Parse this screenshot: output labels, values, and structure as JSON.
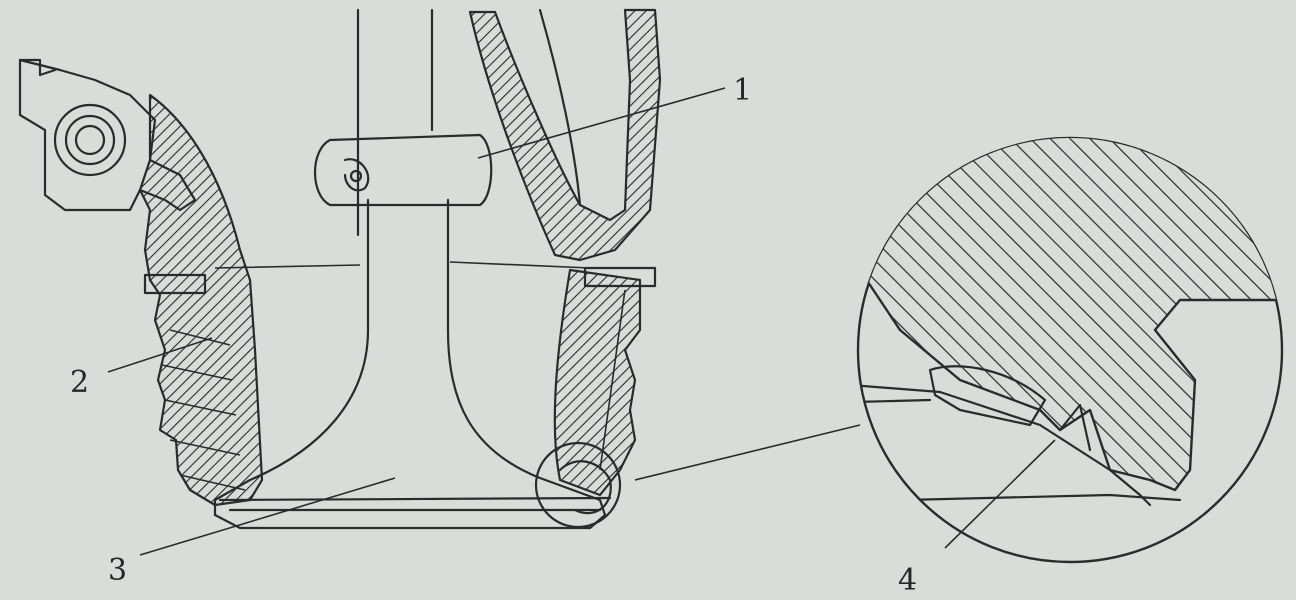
{
  "callouts": [
    {
      "id": "1",
      "label": "1"
    },
    {
      "id": "2",
      "label": "2"
    },
    {
      "id": "3",
      "label": "3"
    },
    {
      "id": "4",
      "label": "4"
    }
  ],
  "colors": {
    "paper": "#d9dcd9",
    "ink": "#2b2b2d"
  }
}
